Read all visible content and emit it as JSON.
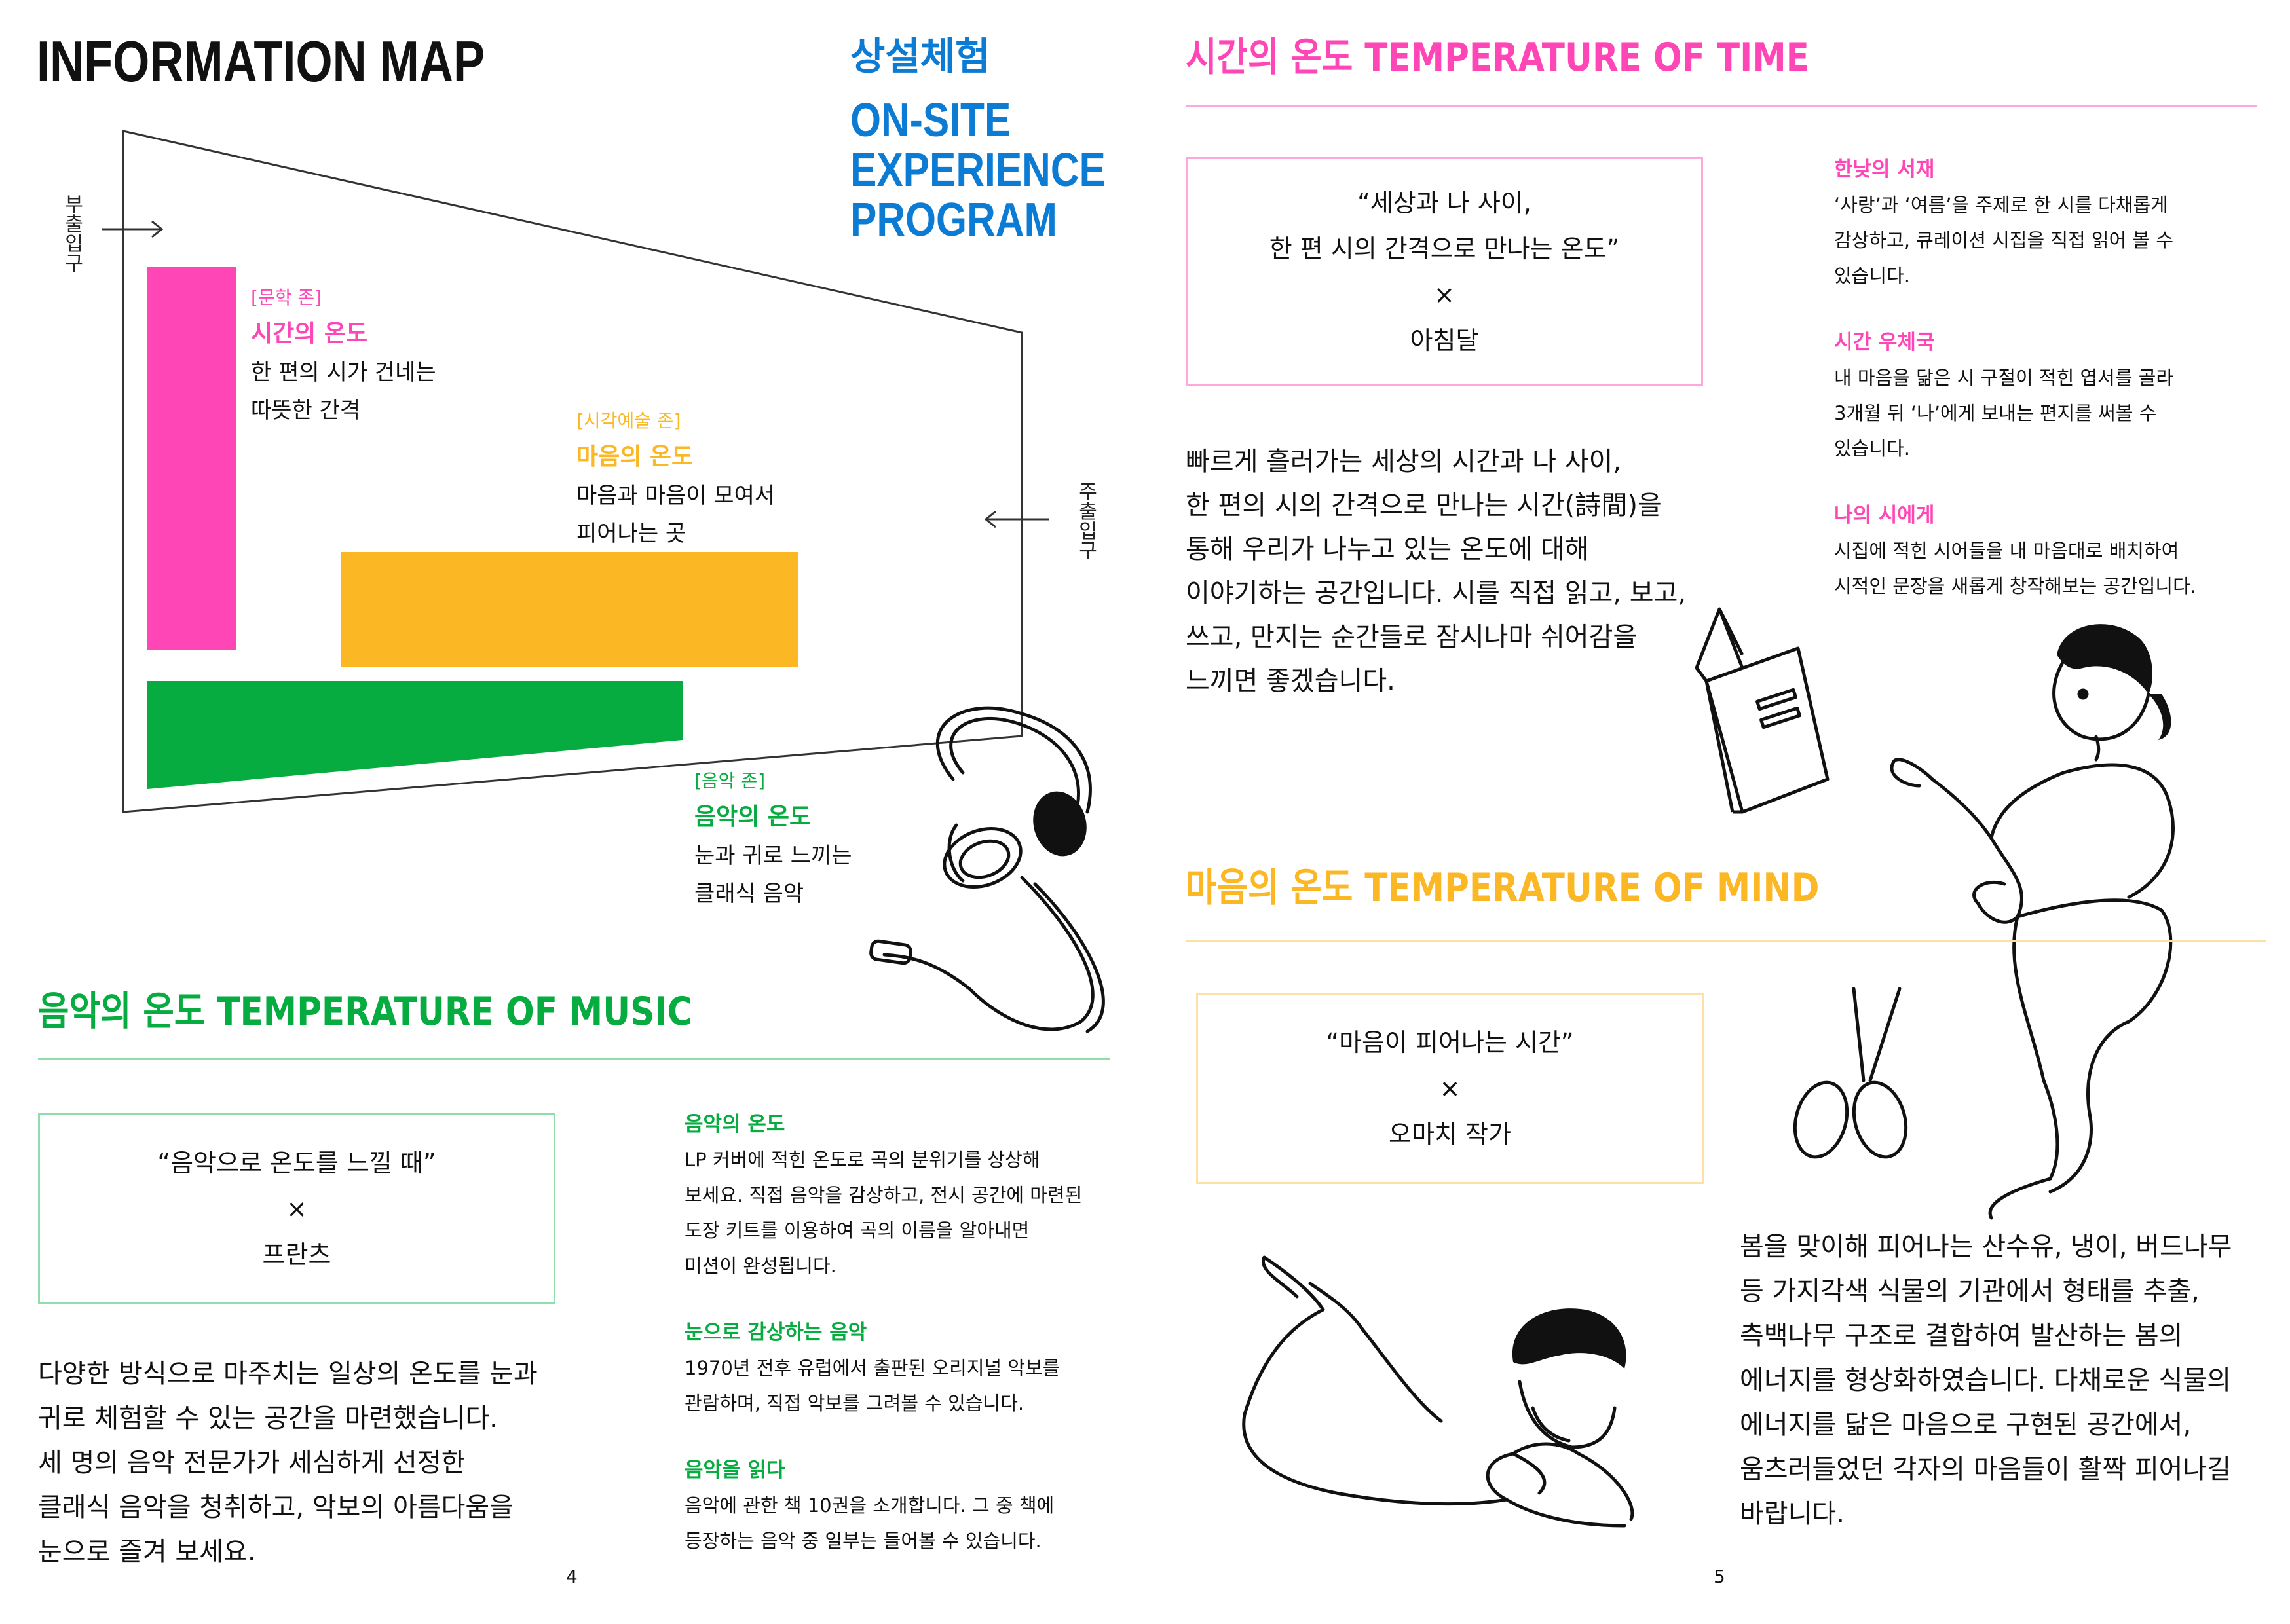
{
  "colors": {
    "pink": "#ff46b6",
    "orange": "#fbb724",
    "green": "#06ac3f",
    "blue": "#0b7bd3",
    "black": "#111111"
  },
  "left_page": {
    "title": "INFORMATION MAP",
    "program_ko": "상설체험",
    "program_en": [
      "ON-SITE",
      "EXPERIENCE",
      "PROGRAM"
    ],
    "map": {
      "exit_left": "부출입구",
      "exit_right": "주출입구",
      "zones": [
        {
          "tag": "[문학 존]",
          "name": "시간의 온도",
          "desc": [
            "한 편의 시가 건네는",
            "따뜻한 간격"
          ]
        },
        {
          "tag": "[시각예술 존]",
          "name": "마음의 온도",
          "desc": [
            "마음과 마음이 모여서",
            "피어나는 곳"
          ]
        },
        {
          "tag": "[음악 존]",
          "name": "음악의 온도",
          "desc": [
            "눈과 귀로 느끼는",
            "클래식 음악"
          ]
        }
      ]
    },
    "music": {
      "heading": "음악의 온도 TEMPERATURE OF MUSIC",
      "quote": "“음악으로 온도를 느낄 때”",
      "times": "×",
      "artist": "프란츠",
      "body": [
        "다양한 방식으로 마주치는 일상의 온도를 눈과",
        "귀로 체험할 수 있는 공간을 마련했습니다.",
        "세 명의 음악 전문가가 세심하게 선정한",
        "클래식 음악을 청취하고, 악보의 아름다움을",
        "눈으로 즐겨 보세요."
      ],
      "programs": [
        {
          "title": "음악의 온도",
          "text": [
            "LP 커버에 적힌 온도로 곡의 분위기를 상상해",
            "보세요. 직접 음악을 감상하고, 전시 공간에 마련된",
            "도장 키트를 이용하여 곡의 이름을 알아내면",
            "미션이 완성됩니다."
          ]
        },
        {
          "title": "눈으로 감상하는 음악",
          "text": [
            "1970년 전후 유럽에서 출판된 오리지널 악보를",
            "관람하며, 직접 악보를 그려볼 수 있습니다."
          ]
        },
        {
          "title": "음악을 읽다",
          "text": [
            "음악에 관한 책 10권을 소개합니다. 그 중 책에",
            "등장하는 음악 중 일부는 들어볼 수 있습니다."
          ]
        }
      ]
    },
    "page_number": "4"
  },
  "right_page": {
    "time": {
      "heading": "시간의 온도 TEMPERATURE OF TIME",
      "quote": [
        "“세상과 나 사이,",
        "한 편 시의 간격으로 만나는 온도”"
      ],
      "times": "×",
      "artist": "아침달",
      "body": [
        "빠르게 흘러가는 세상의 시간과 나 사이,",
        "한 편의 시의 간격으로 만나는 시간(詩間)을",
        "통해 우리가 나누고 있는 온도에 대해",
        "이야기하는 공간입니다. 시를 직접 읽고, 보고,",
        "쓰고, 만지는 순간들로 잠시나마 쉬어감을",
        "느끼면 좋겠습니다."
      ],
      "programs": [
        {
          "title": "한낮의 서재",
          "text": [
            "‘사랑’과 ‘여름’을 주제로 한 시를 다채롭게",
            "감상하고, 큐레이션 시집을 직접 읽어 볼 수",
            "있습니다."
          ]
        },
        {
          "title": "시간 우체국",
          "text": [
            "내 마음을 닮은 시 구절이 적힌 엽서를 골라",
            "3개월 뒤 ‘나’에게 보내는 편지를 써볼 수",
            "있습니다."
          ]
        },
        {
          "title": "나의 시에게",
          "text": [
            "시집에 적힌 시어들을 내 마음대로 배치하여",
            "시적인 문장을 새롭게 창작해보는 공간입니다."
          ]
        }
      ]
    },
    "mind": {
      "heading": "마음의 온도 TEMPERATURE OF MIND",
      "quote": "“마음이 피어나는 시간”",
      "times": "×",
      "artist": "오마치 작가",
      "body": [
        "봄을 맞이해 피어나는 산수유, 냉이, 버드나무",
        "등 가지각색 식물의 기관에서 형태를 추출,",
        "측백나무 구조로 결합하여 발산하는 봄의",
        "에너지를 형상화하였습니다. 다채로운 식물의",
        "에너지를 닮은 마음으로 구현된 공간에서,",
        "움츠러들었던 각자의 마음들이 활짝 피어나길",
        "바랍니다."
      ]
    },
    "page_number": "5"
  }
}
